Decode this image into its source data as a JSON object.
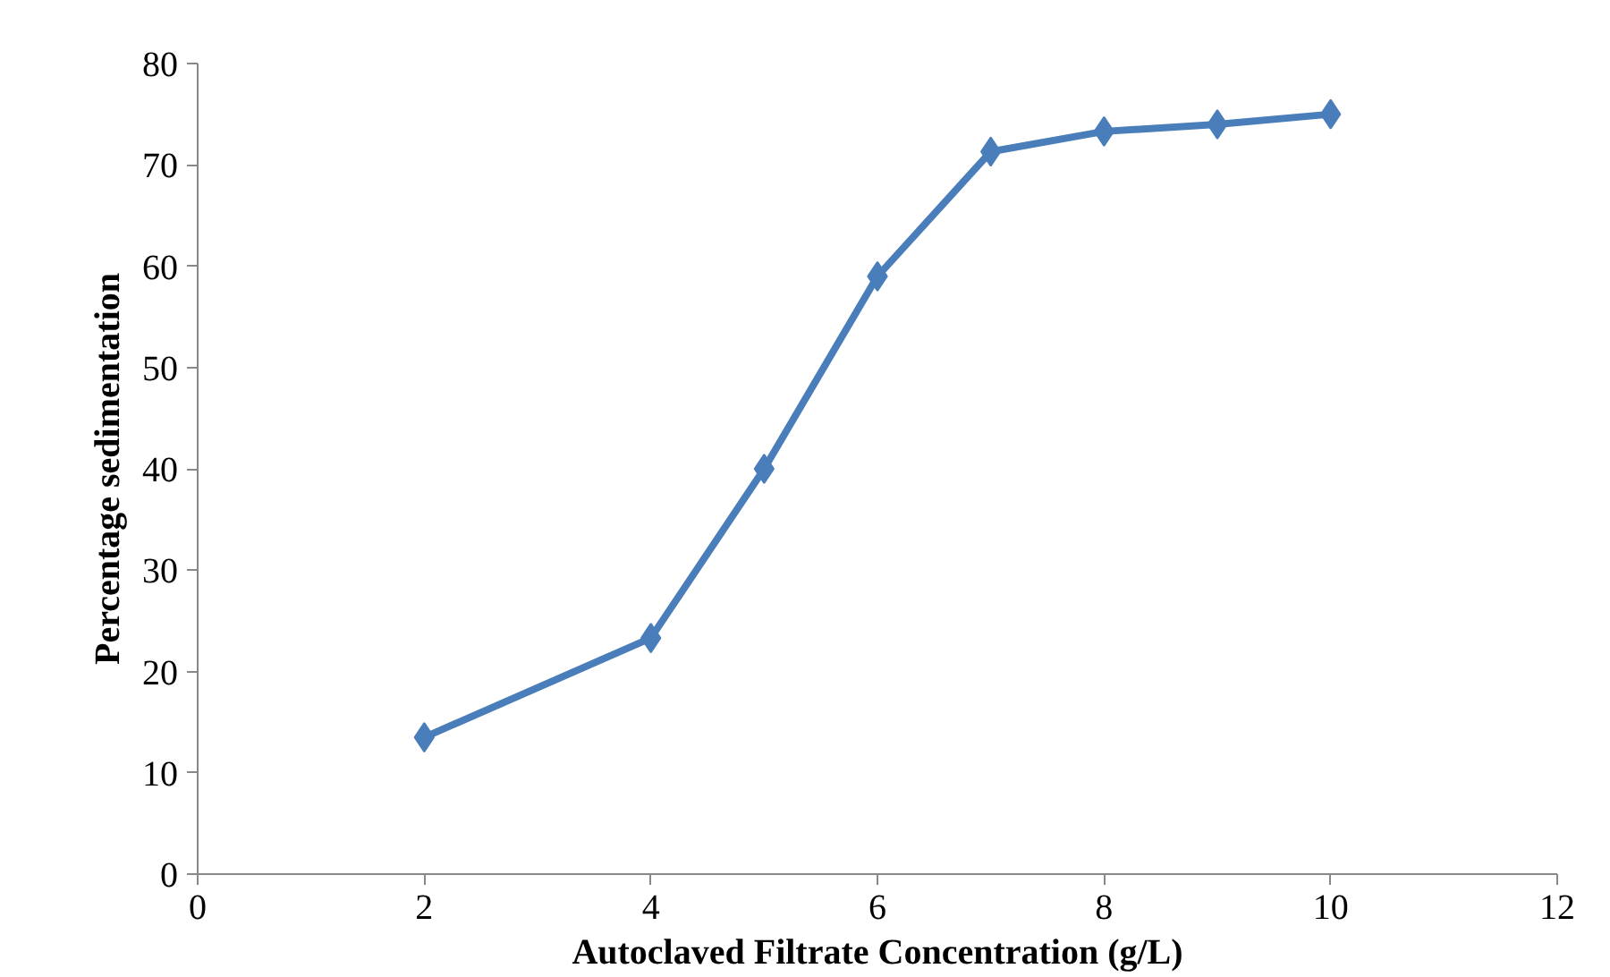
{
  "chart_data": {
    "type": "line",
    "xlabel": "Autoclaved Filtrate Concentration (g/L)",
    "ylabel": "Percentage sedimentation",
    "x": [
      2,
      4,
      5,
      6,
      7,
      8,
      9,
      10
    ],
    "series": [
      {
        "color": "#4a7ebb",
        "values": [
          13.5,
          23.3,
          40,
          59,
          71.3,
          73.3,
          74,
          75
        ]
      }
    ],
    "xlim": [
      0,
      12
    ],
    "xticks": [
      0,
      2,
      4,
      6,
      8,
      10,
      12
    ],
    "ylim": [
      0,
      80
    ],
    "yticks": [
      0,
      10,
      20,
      30,
      40,
      50,
      60,
      70,
      80
    ],
    "grid": false,
    "marker": "diamond",
    "line_style": "solid"
  }
}
